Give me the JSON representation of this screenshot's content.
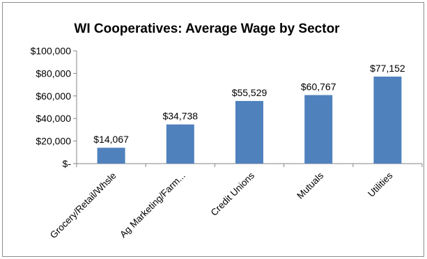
{
  "chart_data": {
    "type": "bar",
    "title": "WI Cooperatives: Average Wage by Sector",
    "categories": [
      "Grocery/Retail/Whsle",
      "Ag Marketing/Farm...",
      "Credit Unions",
      "Mutuals",
      "Utilities"
    ],
    "values": [
      14067,
      34738,
      55529,
      60767,
      77152
    ],
    "data_labels": [
      "$14,067",
      "$34,738",
      "$55,529",
      "$60,767",
      "$77,152"
    ],
    "y_tick_labels": [
      "$-",
      "$20,000",
      "$40,000",
      "$60,000",
      "$80,000",
      "$100,000"
    ],
    "y_ticks": [
      0,
      20000,
      40000,
      60000,
      80000,
      100000
    ],
    "ylim": [
      0,
      100000
    ],
    "xlabel": "",
    "ylabel": "",
    "grid": false,
    "legend": "none",
    "colors": {
      "bar": "#4f81bd",
      "axis": "#868686",
      "text": "#000000",
      "border": "#8c8c8c"
    }
  }
}
